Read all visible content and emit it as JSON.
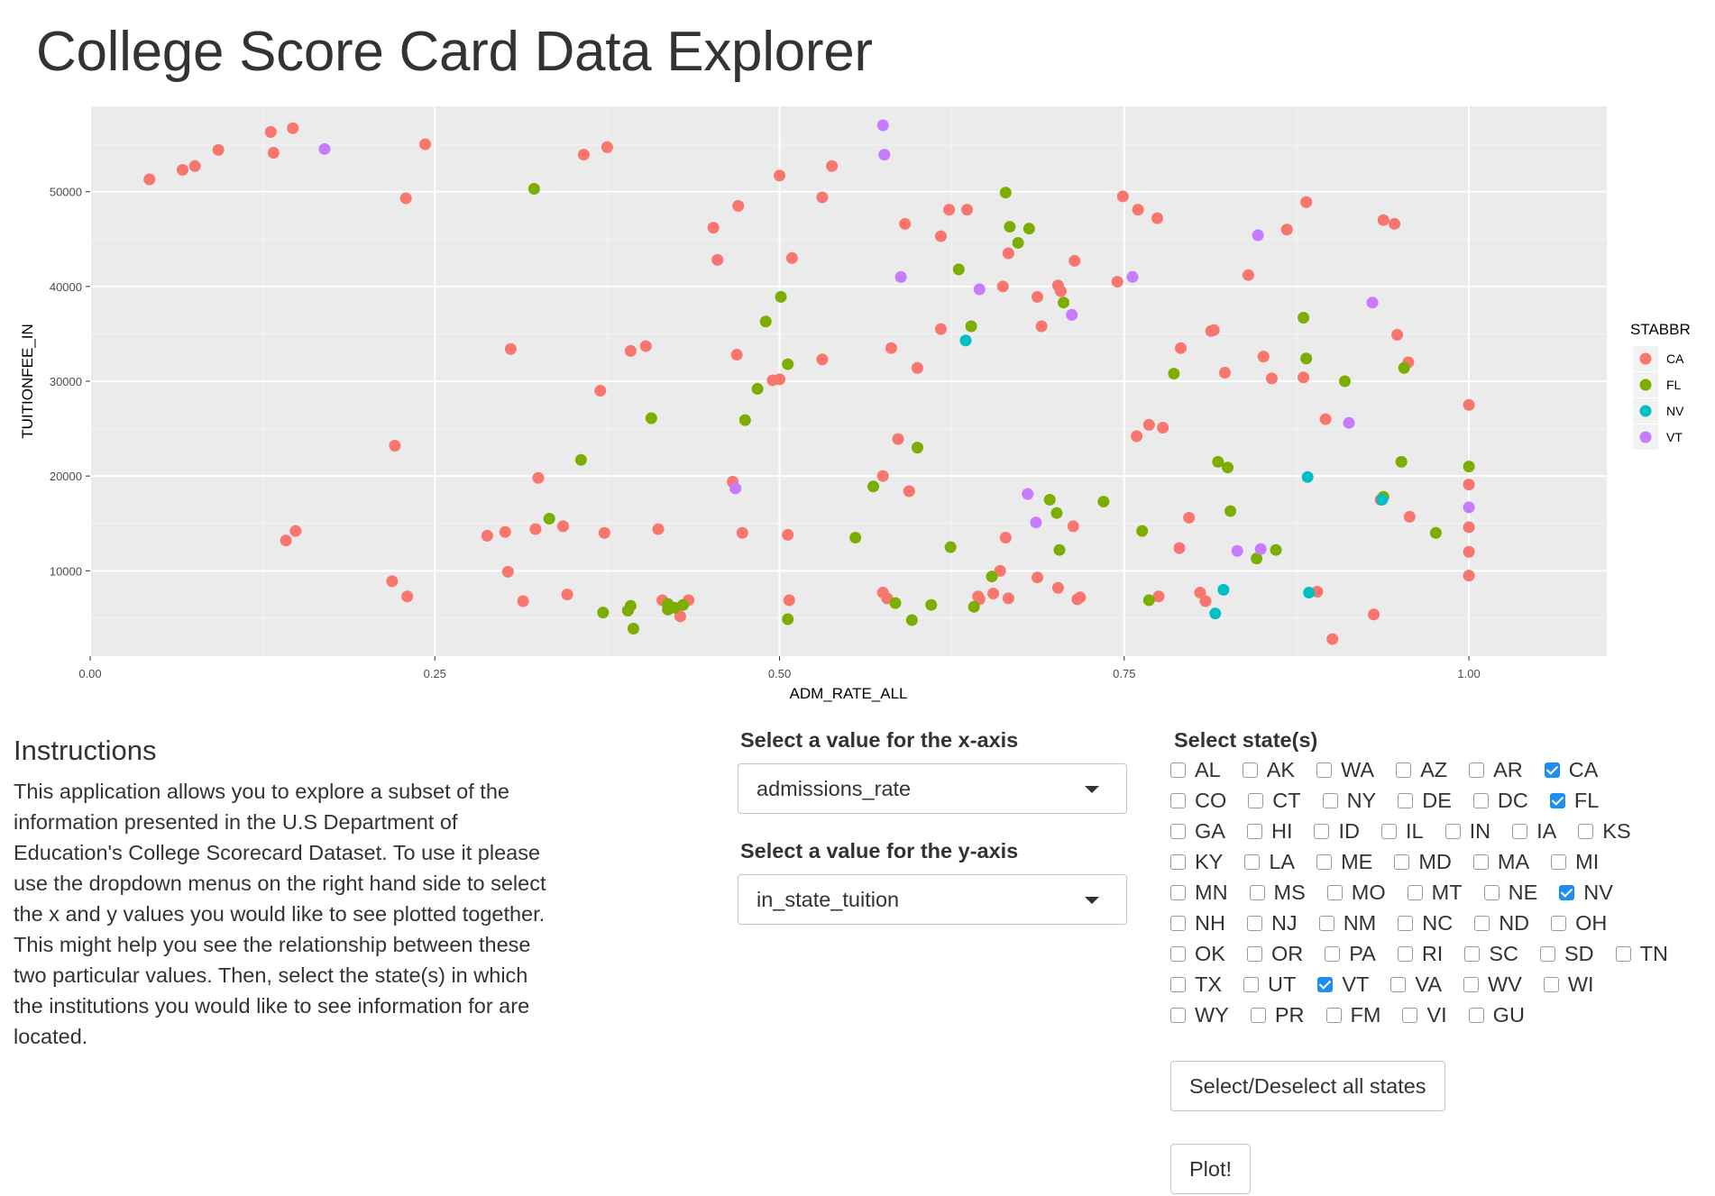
{
  "app": {
    "title": "College Score Card Data Explorer"
  },
  "chart_data": {
    "type": "scatter",
    "xlabel": "ADM_RATE_ALL",
    "ylabel": "TUITIONFEE_IN",
    "xlim": [
      0,
      1.1
    ],
    "ylim": [
      1000,
      59000
    ],
    "xticks": [
      0,
      0.25,
      0.5,
      0.75,
      1.0
    ],
    "xtick_labels": [
      "0.00",
      "0.25",
      "0.50",
      "0.75",
      "1.00"
    ],
    "yticks": [
      10000,
      20000,
      30000,
      40000,
      50000
    ],
    "ytick_labels": [
      "10000",
      "20000",
      "30000",
      "40000",
      "50000"
    ],
    "legend": {
      "title": "STABBR",
      "position": "right"
    },
    "series": [
      {
        "name": "CA",
        "color": "#f8766d",
        "points": [
          [
            0.043,
            51300
          ],
          [
            0.067,
            52300
          ],
          [
            0.076,
            52700
          ],
          [
            0.093,
            54400
          ],
          [
            0.131,
            56300
          ],
          [
            0.133,
            54100
          ],
          [
            0.147,
            56700
          ],
          [
            0.243,
            55000
          ],
          [
            0.229,
            49300
          ],
          [
            0.358,
            53900
          ],
          [
            0.375,
            54700
          ],
          [
            0.5,
            51700
          ],
          [
            0.538,
            52700
          ],
          [
            0.47,
            48500
          ],
          [
            0.452,
            46200
          ],
          [
            0.455,
            42800
          ],
          [
            0.531,
            49400
          ],
          [
            0.509,
            43000
          ],
          [
            0.305,
            33400
          ],
          [
            0.392,
            33200
          ],
          [
            0.403,
            33700
          ],
          [
            0.37,
            29000
          ],
          [
            0.469,
            32800
          ],
          [
            0.495,
            30100
          ],
          [
            0.5,
            30200
          ],
          [
            0.531,
            32300
          ],
          [
            0.221,
            23200
          ],
          [
            0.325,
            19800
          ],
          [
            0.142,
            13200
          ],
          [
            0.149,
            14200
          ],
          [
            0.288,
            13700
          ],
          [
            0.301,
            14100
          ],
          [
            0.323,
            14400
          ],
          [
            0.343,
            14700
          ],
          [
            0.373,
            14000
          ],
          [
            0.412,
            14400
          ],
          [
            0.466,
            19400
          ],
          [
            0.473,
            14000
          ],
          [
            0.506,
            13800
          ],
          [
            0.219,
            8900
          ],
          [
            0.23,
            7300
          ],
          [
            0.303,
            9900
          ],
          [
            0.314,
            6800
          ],
          [
            0.346,
            7500
          ],
          [
            0.415,
            6900
          ],
          [
            0.419,
            6400
          ],
          [
            0.428,
            5200
          ],
          [
            0.434,
            6900
          ],
          [
            0.507,
            6900
          ],
          [
            0.575,
            7700
          ],
          [
            0.578,
            7100
          ],
          [
            0.591,
            46600
          ],
          [
            0.617,
            45300
          ],
          [
            0.623,
            48100
          ],
          [
            0.636,
            48100
          ],
          [
            0.662,
            40000
          ],
          [
            0.666,
            43500
          ],
          [
            0.687,
            38900
          ],
          [
            0.69,
            35800
          ],
          [
            0.702,
            40100
          ],
          [
            0.704,
            39500
          ],
          [
            0.714,
            42700
          ],
          [
            0.745,
            40500
          ],
          [
            0.749,
            49500
          ],
          [
            0.76,
            48100
          ],
          [
            0.774,
            47200
          ],
          [
            0.581,
            33500
          ],
          [
            0.6,
            31400
          ],
          [
            0.617,
            35500
          ],
          [
            0.586,
            23900
          ],
          [
            0.594,
            18400
          ],
          [
            0.575,
            20000
          ],
          [
            0.644,
            7300
          ],
          [
            0.645,
            7000
          ],
          [
            0.655,
            7600
          ],
          [
            0.66,
            10000
          ],
          [
            0.664,
            13500
          ],
          [
            0.666,
            7100
          ],
          [
            0.687,
            9300
          ],
          [
            0.702,
            8200
          ],
          [
            0.713,
            14700
          ],
          [
            0.716,
            7000
          ],
          [
            0.718,
            7200
          ],
          [
            0.759,
            24200
          ],
          [
            0.768,
            25400
          ],
          [
            0.778,
            25100
          ],
          [
            0.791,
            33500
          ],
          [
            0.797,
            15600
          ],
          [
            0.805,
            7700
          ],
          [
            0.809,
            6800
          ],
          [
            0.813,
            35300
          ],
          [
            0.815,
            35400
          ],
          [
            0.823,
            30900
          ],
          [
            0.84,
            41200
          ],
          [
            0.851,
            32600
          ],
          [
            0.857,
            30300
          ],
          [
            0.868,
            46000
          ],
          [
            0.882,
            48900
          ],
          [
            0.88,
            30400
          ],
          [
            0.89,
            7800
          ],
          [
            0.896,
            26000
          ],
          [
            0.901,
            2800
          ],
          [
            0.931,
            5400
          ],
          [
            0.938,
            47000
          ],
          [
            0.946,
            46600
          ],
          [
            0.948,
            34900
          ],
          [
            0.956,
            32000
          ],
          [
            0.957,
            15700
          ],
          [
            0.936,
            17500
          ],
          [
            1.0,
            27500
          ],
          [
            1.0,
            19100
          ],
          [
            1.0,
            14600
          ],
          [
            1.0,
            12000
          ],
          [
            1.0,
            9500
          ],
          [
            0.775,
            7300
          ],
          [
            0.79,
            12400
          ]
        ]
      },
      {
        "name": "FL",
        "color": "#7cae00",
        "points": [
          [
            0.322,
            50300
          ],
          [
            0.333,
            15500
          ],
          [
            0.356,
            21700
          ],
          [
            0.372,
            5600
          ],
          [
            0.39,
            5800
          ],
          [
            0.392,
            6300
          ],
          [
            0.394,
            3900
          ],
          [
            0.407,
            26100
          ],
          [
            0.419,
            6500
          ],
          [
            0.419,
            5900
          ],
          [
            0.424,
            6100
          ],
          [
            0.43,
            6400
          ],
          [
            0.475,
            25900
          ],
          [
            0.484,
            29200
          ],
          [
            0.49,
            36300
          ],
          [
            0.501,
            38900
          ],
          [
            0.506,
            31800
          ],
          [
            0.506,
            4900
          ],
          [
            0.555,
            13500
          ],
          [
            0.568,
            18900
          ],
          [
            0.584,
            6600
          ],
          [
            0.596,
            4800
          ],
          [
            0.6,
            23000
          ],
          [
            0.61,
            6400
          ],
          [
            0.624,
            12500
          ],
          [
            0.63,
            41800
          ],
          [
            0.639,
            35800
          ],
          [
            0.641,
            6200
          ],
          [
            0.654,
            9400
          ],
          [
            0.664,
            49900
          ],
          [
            0.667,
            46300
          ],
          [
            0.673,
            44600
          ],
          [
            0.681,
            46100
          ],
          [
            0.696,
            17500
          ],
          [
            0.701,
            16100
          ],
          [
            0.703,
            12200
          ],
          [
            0.706,
            38300
          ],
          [
            0.735,
            17300
          ],
          [
            0.763,
            14200
          ],
          [
            0.768,
            6900
          ],
          [
            0.786,
            30800
          ],
          [
            0.818,
            21500
          ],
          [
            0.825,
            20900
          ],
          [
            0.827,
            16300
          ],
          [
            0.846,
            11300
          ],
          [
            0.86,
            12200
          ],
          [
            0.88,
            36700
          ],
          [
            0.882,
            32400
          ],
          [
            0.91,
            30000
          ],
          [
            0.938,
            17800
          ],
          [
            0.951,
            21500
          ],
          [
            0.953,
            31400
          ],
          [
            0.976,
            14000
          ],
          [
            1.0,
            21000
          ]
        ]
      },
      {
        "name": "NV",
        "color": "#00bfc4",
        "points": [
          [
            0.635,
            34300
          ],
          [
            0.816,
            5500
          ],
          [
            0.822,
            8000
          ],
          [
            0.883,
            19900
          ],
          [
            0.884,
            7700
          ],
          [
            0.937,
            17500
          ]
        ]
      },
      {
        "name": "VT",
        "color": "#c77cff",
        "points": [
          [
            0.17,
            54500
          ],
          [
            0.468,
            18700
          ],
          [
            0.575,
            57000
          ],
          [
            0.576,
            53900
          ],
          [
            0.588,
            41000
          ],
          [
            0.645,
            39700
          ],
          [
            0.68,
            18100
          ],
          [
            0.686,
            15100
          ],
          [
            0.712,
            37000
          ],
          [
            0.756,
            41000
          ],
          [
            0.832,
            12100
          ],
          [
            0.849,
            12300
          ],
          [
            0.847,
            45400
          ],
          [
            0.913,
            25600
          ],
          [
            0.93,
            38300
          ],
          [
            1.0,
            16700
          ]
        ]
      }
    ]
  },
  "instructions": {
    "title": "Instructions",
    "text": "This application allows you to explore a subset of the information presented in the U.S Department of Education's College Scorecard Dataset. To use it please use the dropdown menus on the right hand side to select the x and y values you would like to see plotted together. This might help you see the relationship between these two particular values. Then, select the state(s) in which the institutions you would like to see information for are located."
  },
  "x_select": {
    "label": "Select a value for the x-axis",
    "value": "admissions_rate"
  },
  "y_select": {
    "label": "Select a value for the y-axis",
    "value": "in_state_tuition"
  },
  "states": {
    "label": "Select state(s)",
    "items": [
      {
        "code": "AL",
        "checked": false
      },
      {
        "code": "AK",
        "checked": false
      },
      {
        "code": "WA",
        "checked": false
      },
      {
        "code": "AZ",
        "checked": false
      },
      {
        "code": "AR",
        "checked": false
      },
      {
        "code": "CA",
        "checked": true
      },
      {
        "code": "CO",
        "checked": false
      },
      {
        "code": "CT",
        "checked": false
      },
      {
        "code": "NY",
        "checked": false
      },
      {
        "code": "DE",
        "checked": false
      },
      {
        "code": "DC",
        "checked": false
      },
      {
        "code": "FL",
        "checked": true
      },
      {
        "code": "GA",
        "checked": false
      },
      {
        "code": "HI",
        "checked": false
      },
      {
        "code": "ID",
        "checked": false
      },
      {
        "code": "IL",
        "checked": false
      },
      {
        "code": "IN",
        "checked": false
      },
      {
        "code": "IA",
        "checked": false
      },
      {
        "code": "KS",
        "checked": false
      },
      {
        "code": "KY",
        "checked": false
      },
      {
        "code": "LA",
        "checked": false
      },
      {
        "code": "ME",
        "checked": false
      },
      {
        "code": "MD",
        "checked": false
      },
      {
        "code": "MA",
        "checked": false
      },
      {
        "code": "MI",
        "checked": false
      },
      {
        "code": "MN",
        "checked": false
      },
      {
        "code": "MS",
        "checked": false
      },
      {
        "code": "MO",
        "checked": false
      },
      {
        "code": "MT",
        "checked": false
      },
      {
        "code": "NE",
        "checked": false
      },
      {
        "code": "NV",
        "checked": true
      },
      {
        "code": "NH",
        "checked": false
      },
      {
        "code": "NJ",
        "checked": false
      },
      {
        "code": "NM",
        "checked": false
      },
      {
        "code": "NC",
        "checked": false
      },
      {
        "code": "ND",
        "checked": false
      },
      {
        "code": "OH",
        "checked": false
      },
      {
        "code": "OK",
        "checked": false
      },
      {
        "code": "OR",
        "checked": false
      },
      {
        "code": "PA",
        "checked": false
      },
      {
        "code": "RI",
        "checked": false
      },
      {
        "code": "SC",
        "checked": false
      },
      {
        "code": "SD",
        "checked": false
      },
      {
        "code": "TN",
        "checked": false
      },
      {
        "code": "TX",
        "checked": false
      },
      {
        "code": "UT",
        "checked": false
      },
      {
        "code": "VT",
        "checked": true
      },
      {
        "code": "VA",
        "checked": false
      },
      {
        "code": "WV",
        "checked": false
      },
      {
        "code": "WI",
        "checked": false
      },
      {
        "code": "WY",
        "checked": false
      },
      {
        "code": "PR",
        "checked": false
      },
      {
        "code": "FM",
        "checked": false
      },
      {
        "code": "VI",
        "checked": false
      },
      {
        "code": "GU",
        "checked": false
      }
    ]
  },
  "buttons": {
    "select_all": "Select/Deselect all states",
    "plot": "Plot!"
  }
}
